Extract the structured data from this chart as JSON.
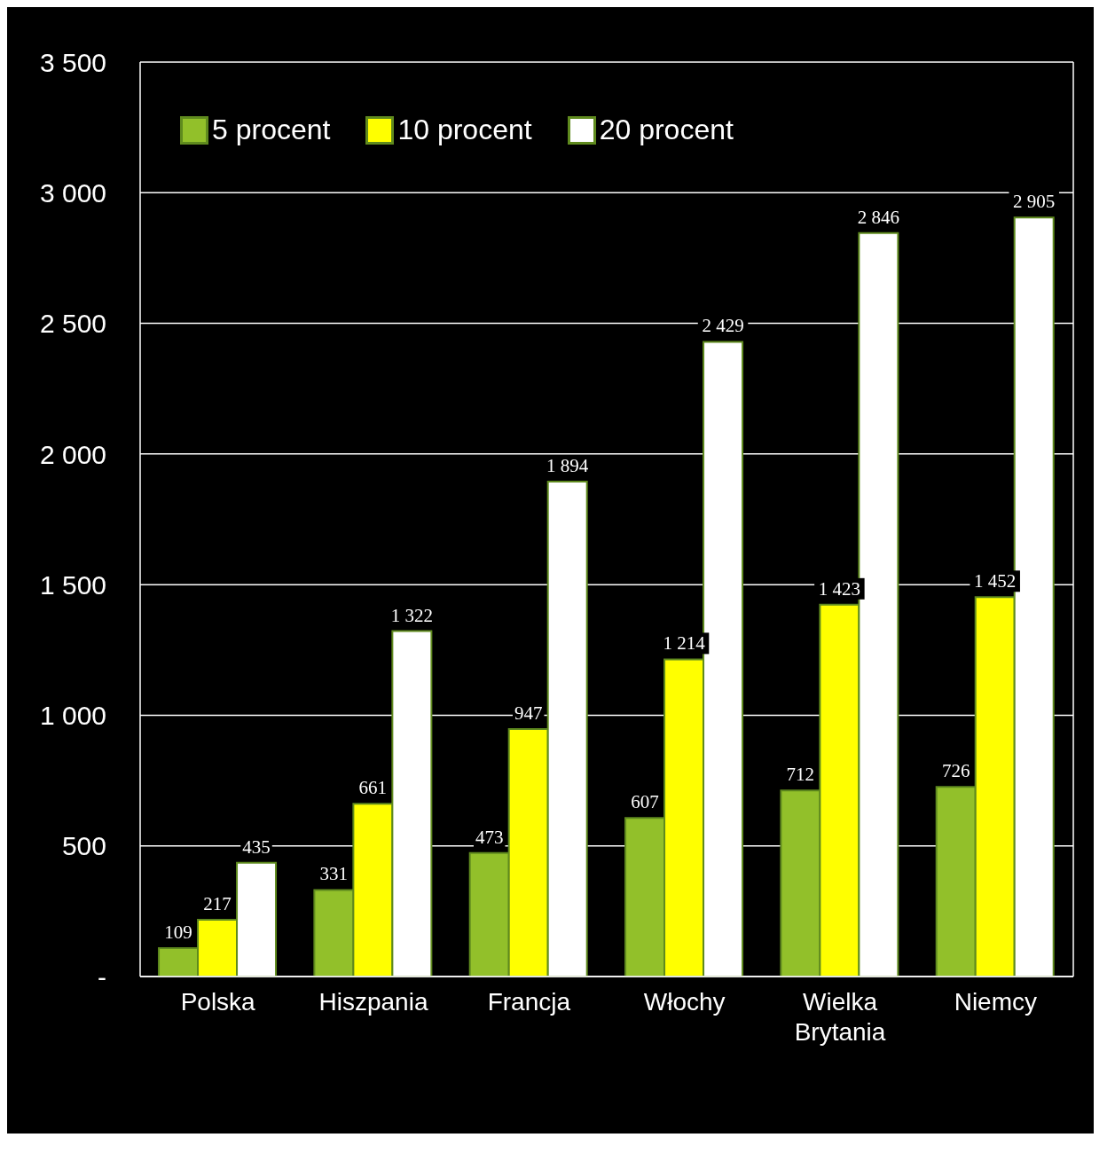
{
  "chart_data": {
    "type": "bar",
    "categories": [
      "Polska",
      "Hiszpania",
      "Francja",
      "Włochy",
      "Wielka Brytania",
      "Niemcy"
    ],
    "series": [
      {
        "name": "5 procent",
        "color": "#92c02a",
        "values": [
          109,
          331,
          473,
          607,
          712,
          726
        ],
        "value_labels": [
          "109",
          "331",
          "473",
          "607",
          "712",
          "726"
        ]
      },
      {
        "name": "10 procent",
        "color": "#ffff00",
        "values": [
          217,
          661,
          947,
          1214,
          1423,
          1452
        ],
        "value_labels": [
          "217",
          "661",
          "947",
          "1 214",
          "1 423",
          "1 452"
        ]
      },
      {
        "name": "20 procent",
        "color": "#ffffff",
        "values": [
          435,
          1322,
          1894,
          2429,
          2846,
          2905
        ],
        "value_labels": [
          "435",
          "1 322",
          "1 894",
          "2 429",
          "2 846",
          "2 905"
        ]
      }
    ],
    "ylim": [
      0,
      3500
    ],
    "yticks": [
      {
        "value": 0,
        "label": "-"
      },
      {
        "value": 500,
        "label": "500"
      },
      {
        "value": 1000,
        "label": "1 000"
      },
      {
        "value": 1500,
        "label": "1 500"
      },
      {
        "value": 2000,
        "label": "2 000"
      },
      {
        "value": 2500,
        "label": "2 500"
      },
      {
        "value": 3000,
        "label": "3 000"
      },
      {
        "value": 3500,
        "label": "3 500"
      }
    ],
    "grid": "y",
    "legend": "top left"
  }
}
